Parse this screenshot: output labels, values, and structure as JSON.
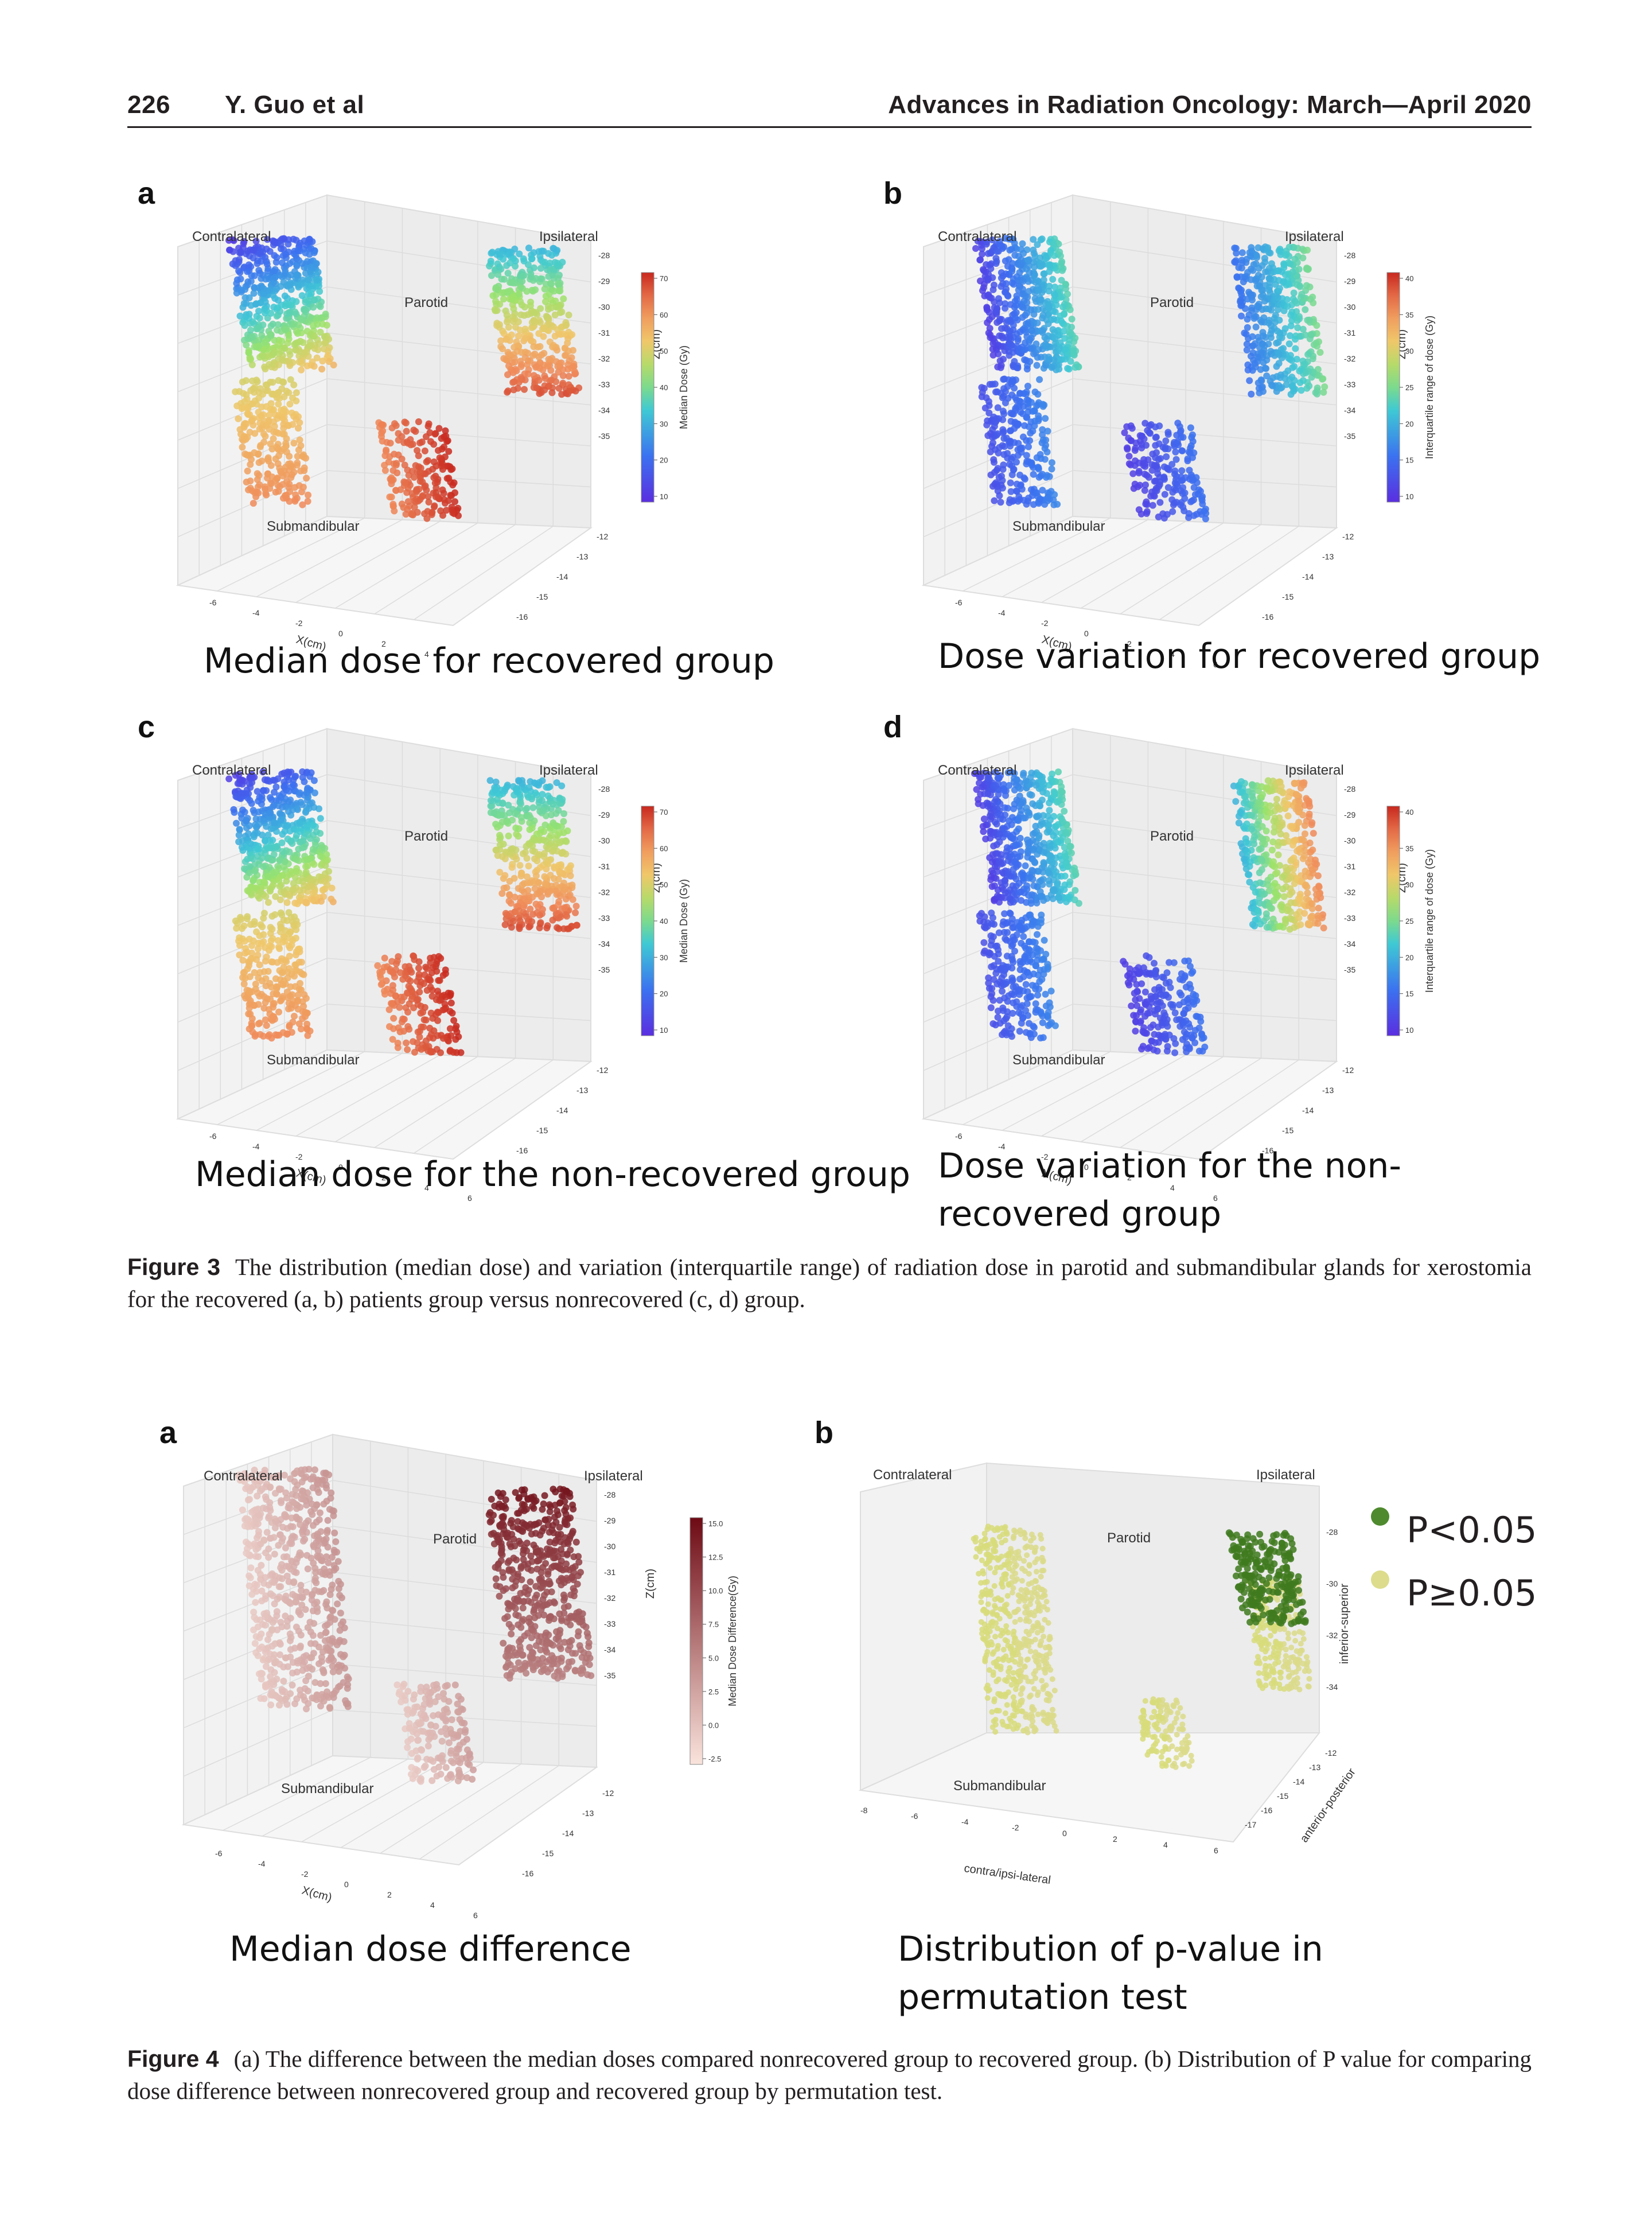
{
  "header": {
    "page_number": "226",
    "authors": "Y. Guo et al",
    "journal": "Advances in Radiation Oncology: March—April 2020"
  },
  "figure3": {
    "panels": [
      {
        "letter": "a",
        "contralateral": "Contralateral",
        "ipsilateral": "Ipsilateral",
        "parotid": "Parotid",
        "submandibular": "Submandibular",
        "xaxis": "X(cm)",
        "zaxis": "Z(cm)",
        "cbar_label": "Median Dose (Gy)",
        "cbar_ticks": [
          "70",
          "60",
          "50",
          "40",
          "30",
          "20",
          "10"
        ],
        "colormap": "rainbow",
        "subcaption": "Median dose for recovered group"
      },
      {
        "letter": "b",
        "contralateral": "Contralateral",
        "ipsilateral": "Ipsilateral",
        "parotid": "Parotid",
        "submandibular": "Submandibular",
        "xaxis": "X(cm)",
        "zaxis": "Z(cm)",
        "cbar_label": "Interquartile range of dose (Gy)",
        "cbar_ticks": [
          "40",
          "35",
          "30",
          "25",
          "20",
          "15",
          "10"
        ],
        "colormap": "rainbow",
        "subcaption": "Dose variation for recovered group"
      },
      {
        "letter": "c",
        "contralateral": "Contralateral",
        "ipsilateral": "Ipsilateral",
        "parotid": "Parotid",
        "submandibular": "Submandibular",
        "xaxis": "X(cm)",
        "zaxis": "Z(cm)",
        "cbar_label": "Median Dose (Gy)",
        "cbar_ticks": [
          "70",
          "60",
          "50",
          "40",
          "30",
          "20",
          "10"
        ],
        "colormap": "rainbow",
        "subcaption": "Median dose for the non-recovered group"
      },
      {
        "letter": "d",
        "contralateral": "Contralateral",
        "ipsilateral": "Ipsilateral",
        "parotid": "Parotid",
        "submandibular": "Submandibular",
        "xaxis": "X(cm)",
        "zaxis": "Z(cm)",
        "cbar_label": "Interquartile range of dose (Gy)",
        "cbar_ticks": [
          "40",
          "35",
          "30",
          "25",
          "20",
          "15",
          "10"
        ],
        "colormap": "rainbow",
        "subcaption": "Dose variation for the non-recovered group"
      }
    ],
    "z_ticks": [
      "-28",
      "-29",
      "-30",
      "-31",
      "-32",
      "-33",
      "-34",
      "-35"
    ],
    "y_ticks": [
      "-12",
      "-13",
      "-14",
      "-15",
      "-16"
    ],
    "x_ticks": [
      "-6",
      "-4",
      "-2",
      "0",
      "2",
      "4",
      "6"
    ],
    "caption_label": "Figure 3",
    "caption_text": "The distribution (median dose) and variation (interquartile range) of radiation dose in parotid and submandibular glands for xerostomia for the recovered (a, b) patients group versus nonrecovered (c, d) group."
  },
  "figure4": {
    "panel_a": {
      "letter": "a",
      "contralateral": "Contralateral",
      "ipsilateral": "Ipsilateral",
      "parotid": "Parotid",
      "submandibular": "Submandibular",
      "xaxis": "X(cm)",
      "zaxis": "Z(cm)",
      "cbar_label": "Median Dose Difference(Gy)",
      "cbar_ticks": [
        "15.0",
        "12.5",
        "10.0",
        "7.5",
        "5.0",
        "2.5",
        "0.0",
        "-2.5"
      ],
      "colormap": "reds",
      "subcaption": "Median dose difference"
    },
    "panel_b": {
      "letter": "b",
      "contralateral": "Contralateral",
      "ipsilateral": "Ipsilateral",
      "parotid": "Parotid",
      "submandibular": "Submandibular",
      "xaxis": "contra/ipsi-lateral",
      "yaxis": "anterior-posterior",
      "zaxis": "inferior-superior",
      "z_ticks": [
        "-28",
        "-30",
        "-32",
        "-34"
      ],
      "y_ticks": [
        "-12",
        "-13",
        "-14",
        "-15",
        "-16",
        "-17"
      ],
      "x_ticks": [
        "-8",
        "-6",
        "-4",
        "-2",
        "0",
        "2",
        "4",
        "6"
      ],
      "subcaption": "Distribution of p-value in permutation test",
      "legend": [
        {
          "label": "P<0.05",
          "color": "#4f8a2e"
        },
        {
          "label": "P≥0.05",
          "color": "#dcdc8c"
        }
      ]
    },
    "caption_label": "Figure 4",
    "caption_text": "(a) The difference between the median doses compared nonrecovered group to recovered group. (b) Distribution of P value for comparing dose difference between nonrecovered group and recovered group by permutation test."
  }
}
